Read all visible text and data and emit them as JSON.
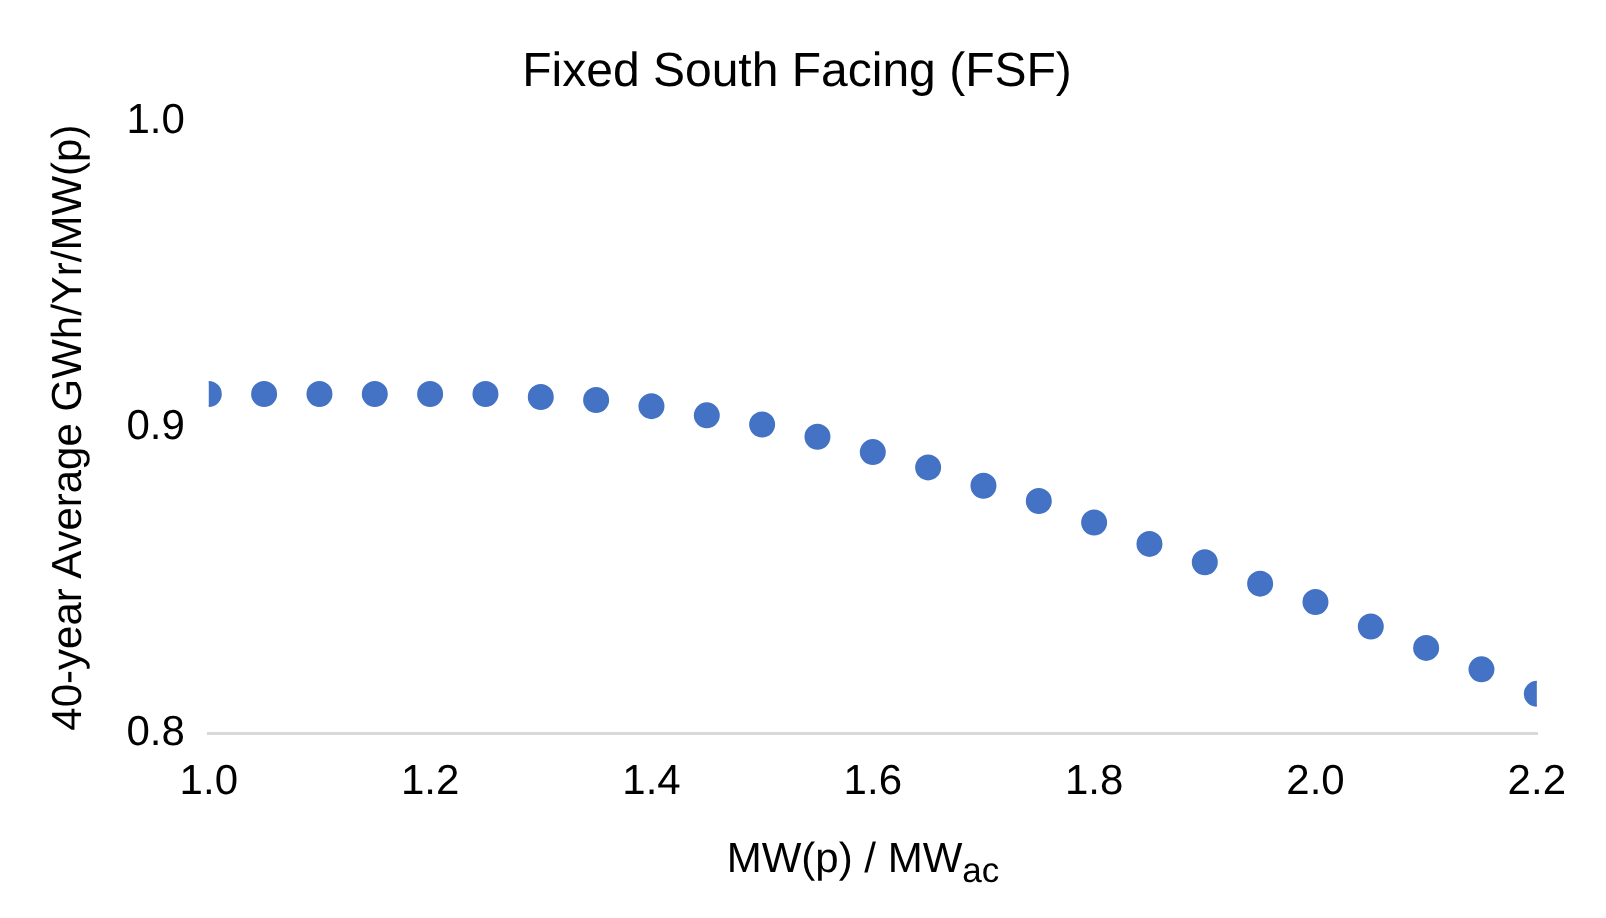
{
  "chart_data": {
    "type": "scatter",
    "title": "Fixed South Facing (FSF)",
    "xlabel": "MW(p) / MW$_{ac}$",
    "ylabel": "40-year Average GWh/Yr/MW(p)",
    "x": [
      1.0,
      1.05,
      1.1,
      1.15,
      1.2,
      1.25,
      1.3,
      1.35,
      1.4,
      1.45,
      1.5,
      1.55,
      1.6,
      1.65,
      1.7,
      1.75,
      1.8,
      1.85,
      1.9,
      1.95,
      2.0,
      2.05,
      2.1,
      2.15,
      2.2
    ],
    "series": [
      {
        "color": "#4472c4",
        "values": [
          0.911,
          0.911,
          0.911,
          0.911,
          0.911,
          0.911,
          0.91,
          0.909,
          0.907,
          0.904,
          0.901,
          0.897,
          0.892,
          0.887,
          0.881,
          0.876,
          0.869,
          0.862,
          0.856,
          0.849,
          0.843,
          0.835,
          0.828,
          0.821,
          0.813
        ]
      }
    ],
    "xlim": [
      1.0,
      2.2
    ],
    "xticks": [
      {
        "value": 1.0,
        "label": "1.0"
      },
      1.2,
      1.4,
      1.6,
      1.8,
      {
        "value": 2.0,
        "label": "2.0"
      },
      2.2
    ],
    "ylim": [
      0.8,
      1.0
    ],
    "yticks": [
      0.8,
      0.9,
      {
        "value": 1.0,
        "label": "1.0"
      }
    ],
    "grid": false,
    "legend": false,
    "marker": "circle"
  }
}
